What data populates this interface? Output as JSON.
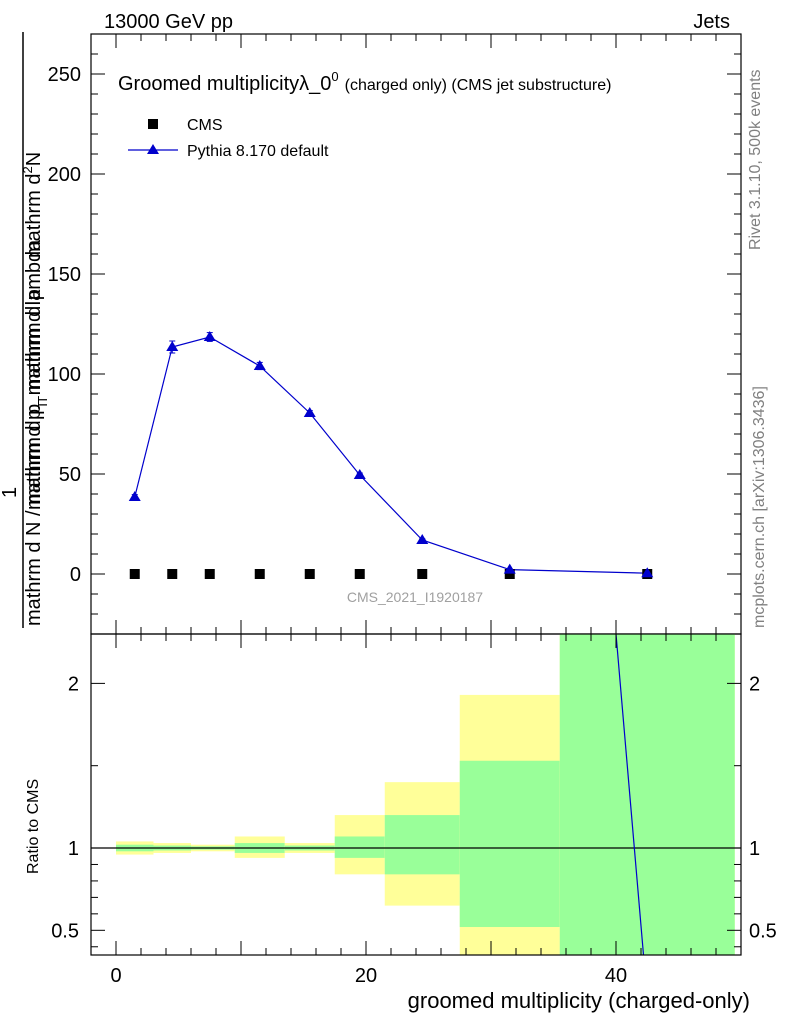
{
  "header": {
    "left": "13000 GeV pp",
    "right": "Jets"
  },
  "side_labels": {
    "rivet": "Rivet 3.1.10,  500k events",
    "mcplots": "mcplots.cern.ch [arXiv:1306.3436]"
  },
  "watermark": "CMS_2021_I1920187",
  "title": {
    "main": "Groomed multiplicityλ_0",
    "sup": "0",
    "small": "(charged only) (CMS jet substructure)"
  },
  "y_label": {
    "numerator": "mathrm d",
    "numerator_sup": "2",
    "numerator_tail": "N",
    "one": "1",
    "denominator_top": "mathrm d p",
    "denominator_top_sub": "T",
    "denominator_top_tail": " mathrm d lambda",
    "denominator": "mathrm d N / mathrm d p",
    "denominator_sub": "T",
    "denominator_tail": " mathrm d p"
  },
  "ratio_label": "Ratio to CMS",
  "x_label": "groomed multiplicity (charged-only)",
  "colors": {
    "mc": "#0000cc",
    "data": "#000000",
    "band_outer": "#ffff99",
    "band_inner": "#99ff99"
  },
  "chart_data": {
    "type": "line",
    "legend": [
      {
        "name": "CMS",
        "marker": "square"
      },
      {
        "name": "Pythia 8.170 default",
        "marker": "triangle"
      }
    ],
    "legend_position": "top-left",
    "main_ylim": [
      -30,
      270
    ],
    "main_yticks": [
      0,
      50,
      100,
      150,
      200,
      250
    ],
    "xlim": [
      -2,
      50
    ],
    "xticks": [
      0,
      20,
      40
    ],
    "series": [
      {
        "name": "CMS",
        "points": [
          {
            "x": 1.5,
            "y": 0
          },
          {
            "x": 4.5,
            "y": 0
          },
          {
            "x": 7.5,
            "y": 0
          },
          {
            "x": 11.5,
            "y": 0
          },
          {
            "x": 15.5,
            "y": 0
          },
          {
            "x": 19.5,
            "y": 0
          },
          {
            "x": 24.5,
            "y": 0
          },
          {
            "x": 31.5,
            "y": 0
          },
          {
            "x": 42.5,
            "y": 0
          }
        ]
      },
      {
        "name": "Pythia 8.170 default",
        "points": [
          {
            "x": 1.5,
            "y": 38.5,
            "err": 1.2
          },
          {
            "x": 4.5,
            "y": 113.5,
            "err": 3.0
          },
          {
            "x": 7.5,
            "y": 118.5,
            "err": 2.2
          },
          {
            "x": 11.5,
            "y": 104,
            "err": 1.8
          },
          {
            "x": 15.5,
            "y": 80.5,
            "err": 1.2
          },
          {
            "x": 19.5,
            "y": 49.5,
            "err": 1.0
          },
          {
            "x": 24.5,
            "y": 17,
            "err": 0.6
          },
          {
            "x": 31.5,
            "y": 2.2,
            "err": 0.2
          },
          {
            "x": 42.5,
            "y": 0.4,
            "err": 0.1
          }
        ]
      }
    ],
    "ratio": {
      "ylim": [
        0.35,
        2.3
      ],
      "yticks": [
        0.5,
        1,
        2
      ],
      "reference": 1,
      "bands": [
        {
          "x0": 0,
          "x1": 3,
          "outer": [
            0.96,
            1.04
          ],
          "inner": [
            0.98,
            1.02
          ]
        },
        {
          "x0": 3,
          "x1": 6,
          "outer": [
            0.97,
            1.03
          ],
          "inner": [
            0.985,
            1.015
          ]
        },
        {
          "x0": 6,
          "x1": 9.5,
          "outer": [
            0.98,
            1.02
          ],
          "inner": [
            0.99,
            1.01
          ]
        },
        {
          "x0": 9.5,
          "x1": 13.5,
          "outer": [
            0.94,
            1.07
          ],
          "inner": [
            0.97,
            1.03
          ]
        },
        {
          "x0": 13.5,
          "x1": 17.5,
          "outer": [
            0.97,
            1.03
          ],
          "inner": [
            0.985,
            1.015
          ]
        },
        {
          "x0": 17.5,
          "x1": 21.5,
          "outer": [
            0.84,
            1.2
          ],
          "inner": [
            0.94,
            1.07
          ]
        },
        {
          "x0": 21.5,
          "x1": 27.5,
          "outer": [
            0.65,
            1.4
          ],
          "inner": [
            0.84,
            1.2
          ]
        },
        {
          "x0": 27.5,
          "x1": 35.5,
          "outer": [
            0.35,
            1.93
          ],
          "inner": [
            0.52,
            1.53
          ]
        },
        {
          "x0": 35.5,
          "x1": 49.5,
          "outer": [
            0.35,
            2.3
          ],
          "inner": [
            0.35,
            2.3
          ]
        }
      ],
      "mc_line": [
        {
          "x": 40.0,
          "y": 2.3
        },
        {
          "x": 42.2,
          "y": 0.35
        }
      ]
    }
  }
}
